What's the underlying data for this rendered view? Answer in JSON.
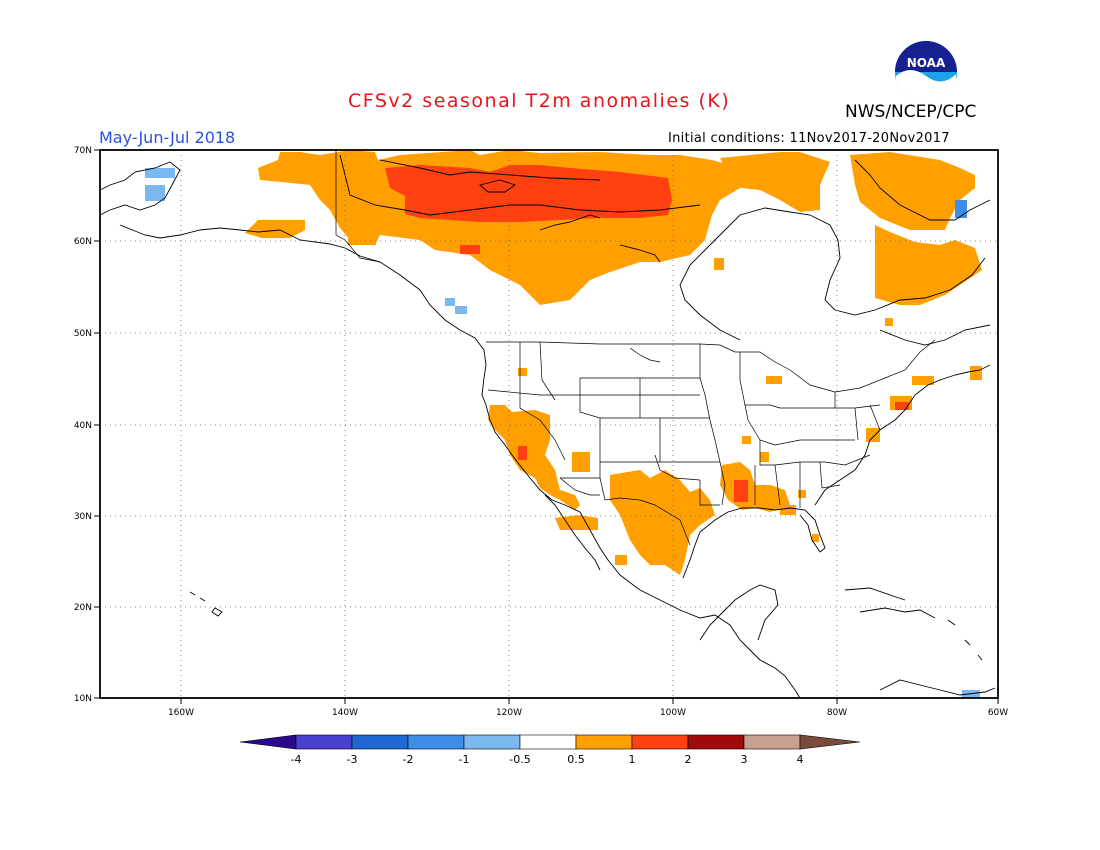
{
  "header": {
    "title": "CFSv2 seasonal T2m anomalies (K)",
    "agency": "NWS/NCEP/CPC",
    "logo_text": "NOAA",
    "season": "May-Jun-Jul 2018",
    "initial_conditions": "Initial conditions: 11Nov2017-20Nov2017"
  },
  "map": {
    "region": "North America",
    "lon_range": [
      -172,
      -60
    ],
    "lat_range": [
      10,
      70
    ],
    "lat_labels": [
      "70N",
      "60N",
      "50N",
      "40N",
      "30N",
      "20N",
      "10N"
    ],
    "lon_labels": [
      "160W",
      "140W",
      "120W",
      "100W",
      "80W",
      "60W"
    ],
    "grid": "dotted"
  },
  "colorbar": {
    "labels": [
      "-4",
      "-3",
      "-2",
      "-1",
      "-0.5",
      "0.5",
      "1",
      "2",
      "3",
      "4"
    ],
    "colors": [
      "#2a0a8c",
      "#4b3fcf",
      "#1f67d2",
      "#3d8ee8",
      "#7cb8f0",
      "#ffffff",
      "#ffa000",
      "#ff4010",
      "#a00a0a",
      "#c8a090",
      "#7a4a3a"
    ]
  },
  "colors": {
    "orange": "#ffa000",
    "red": "#ff4010",
    "light_blue": "#7cb8f0",
    "mid_blue": "#3d8ee8",
    "title_red": "#e8141c",
    "season_blue": "#2a52e0"
  }
}
